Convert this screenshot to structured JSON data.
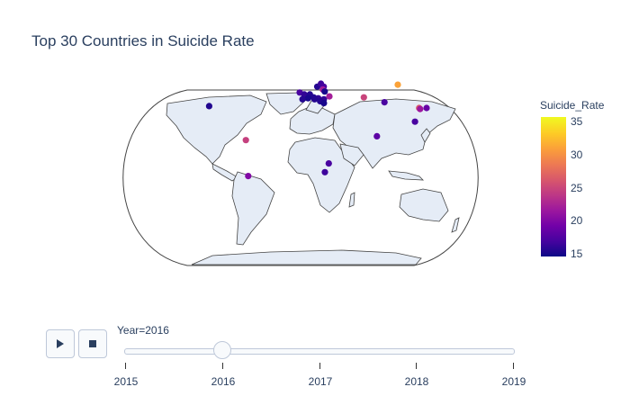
{
  "title": "Top 30 Countries in Suicide Rate",
  "chart_data": {
    "type": "scatter",
    "projection": "natural earth",
    "color_variable": "Suicide_Rate",
    "color_range": [
      14.5,
      35.5
    ],
    "colorbar": {
      "title": "Suicide_Rate",
      "ticks": [
        15,
        20,
        25,
        30,
        35
      ]
    },
    "points": [
      {
        "lon": -98,
        "lat": 39,
        "value": 15.3
      },
      {
        "lon": -58,
        "lat": 4,
        "value": 24.5
      },
      {
        "lon": -56,
        "lat": -33,
        "value": 20.0
      },
      {
        "lon": 26,
        "lat": -29,
        "value": 16.5
      },
      {
        "lon": 30,
        "lat": -20,
        "value": 17.0
      },
      {
        "lon": 81,
        "lat": 8,
        "value": 18.0
      },
      {
        "lon": 68,
        "lat": 48,
        "value": 24.8
      },
      {
        "lon": 105,
        "lat": 61,
        "value": 31.0
      },
      {
        "lon": 90,
        "lat": 43,
        "value": 17.0
      },
      {
        "lon": 127,
        "lat": 37,
        "value": 26.5
      },
      {
        "lon": 128,
        "lat": 36,
        "value": 21.5
      },
      {
        "lon": 135,
        "lat": 37,
        "value": 18.5
      },
      {
        "lon": 122,
        "lat": 23,
        "value": 17.0
      },
      {
        "lon": -1,
        "lat": 53,
        "value": 17.0
      },
      {
        "lon": 4,
        "lat": 51,
        "value": 16.0
      },
      {
        "lon": 10,
        "lat": 51,
        "value": 15.5
      },
      {
        "lon": 14,
        "lat": 48,
        "value": 15.5
      },
      {
        "lon": 8,
        "lat": 47,
        "value": 15.0
      },
      {
        "lon": 18,
        "lat": 59,
        "value": 15.5
      },
      {
        "lon": 22,
        "lat": 62,
        "value": 16.5
      },
      {
        "lon": 25,
        "lat": 59,
        "value": 17.0
      },
      {
        "lon": 24,
        "lat": 56,
        "value": 22.0
      },
      {
        "lon": 26,
        "lat": 54,
        "value": 15.0
      },
      {
        "lon": 19,
        "lat": 47,
        "value": 16.0
      },
      {
        "lon": 15,
        "lat": 46,
        "value": 15.5
      },
      {
        "lon": 25,
        "lat": 46,
        "value": 16.0
      },
      {
        "lon": 31,
        "lat": 49,
        "value": 22.0
      },
      {
        "lon": 21,
        "lat": 44,
        "value": 15.5
      },
      {
        "lon": 25,
        "lat": 42,
        "value": 15.0
      },
      {
        "lon": 2,
        "lat": 46,
        "value": 15.5
      }
    ]
  },
  "animation": {
    "play_icon": "play-icon",
    "stop_icon": "stop-icon",
    "current_label": "Year=2016",
    "current_year": 2016,
    "years": [
      "2015",
      "2016",
      "2017",
      "2018",
      "2019"
    ]
  }
}
